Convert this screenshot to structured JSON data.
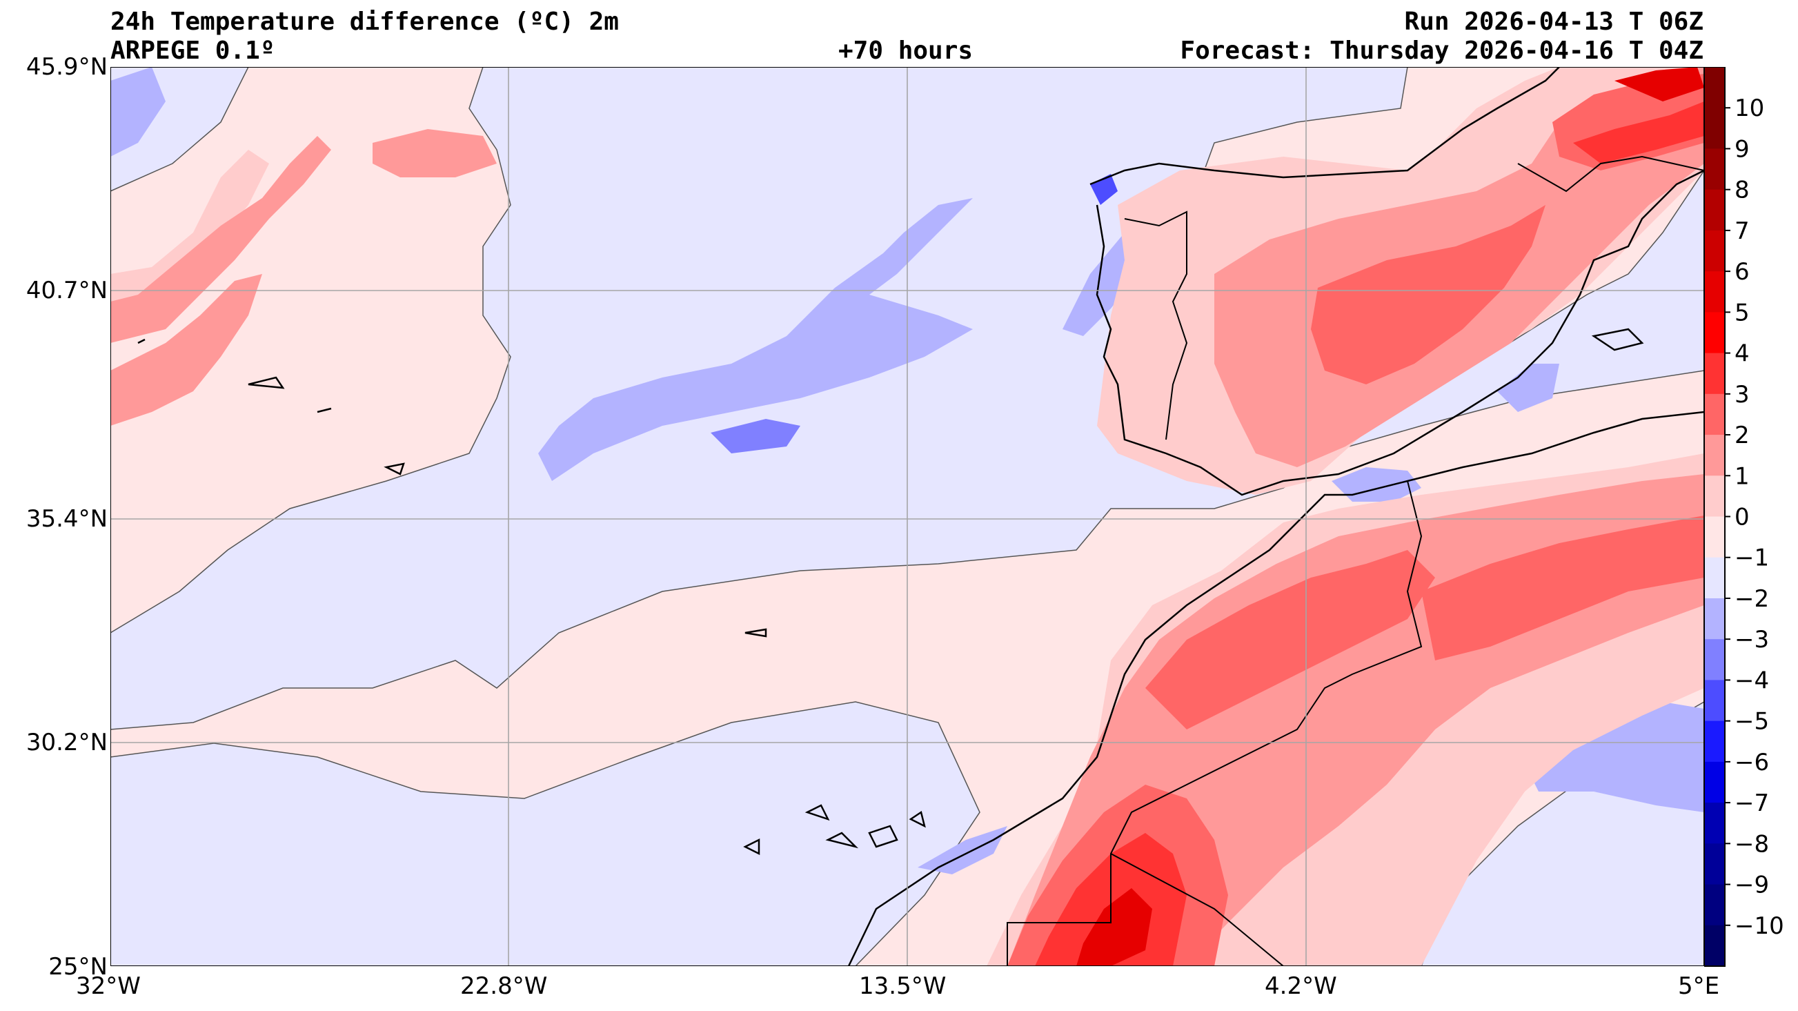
{
  "header": {
    "title": "24h Temperature difference (ºC) 2m",
    "model": "ARPEGE 0.1º",
    "lead": "+70 hours",
    "run": "Run 2026-04-13 T 06Z",
    "forecast": "Forecast: Thursday 2026-04-16 T 04Z"
  },
  "map": {
    "extent": {
      "lon_min": -32,
      "lon_max": 5,
      "lat_min": 25,
      "lat_max": 45.9
    },
    "x_ticks": [
      {
        "lon": -32,
        "label": "32°W"
      },
      {
        "lon": -22.8,
        "label": "22.8°W"
      },
      {
        "lon": -13.5,
        "label": "13.5°W"
      },
      {
        "lon": -4.2,
        "label": "4.2°W"
      },
      {
        "lon": 5,
        "label": "5°E"
      }
    ],
    "y_ticks": [
      {
        "lat": 45.9,
        "label": "45.9°N"
      },
      {
        "lat": 40.7,
        "label": "40.7°N"
      },
      {
        "lat": 35.4,
        "label": "35.4°N"
      },
      {
        "lat": 30.2,
        "label": "30.2°N"
      },
      {
        "lat": 25,
        "label": "25°N"
      }
    ],
    "grid": true
  },
  "colorbar": {
    "tick_labels": [
      "10",
      "9",
      "8",
      "7",
      "6",
      "5",
      "4",
      "3",
      "2",
      "1",
      "0",
      "−1",
      "−2",
      "−3",
      "−4",
      "−5",
      "−6",
      "−7",
      "−8",
      "−9",
      "−10"
    ],
    "colors": {
      "10": "#800000",
      "9": "#990000",
      "8": "#b30000",
      "7": "#cc0000",
      "6": "#e60000",
      "5": "#ff0000",
      "4": "#ff3333",
      "3": "#ff6666",
      "2": "#ff9999",
      "1": "#ffcccc",
      "0": "#ffe6e6",
      "-1": "#e6e6ff",
      "-2": "#b3b3ff",
      "-3": "#8080ff",
      "-4": "#4d4dff",
      "-5": "#1a1aff",
      "-6": "#0000e6",
      "-7": "#0000b3",
      "-8": "#000099",
      "-9": "#000080",
      "-10": "#000066"
    }
  }
}
